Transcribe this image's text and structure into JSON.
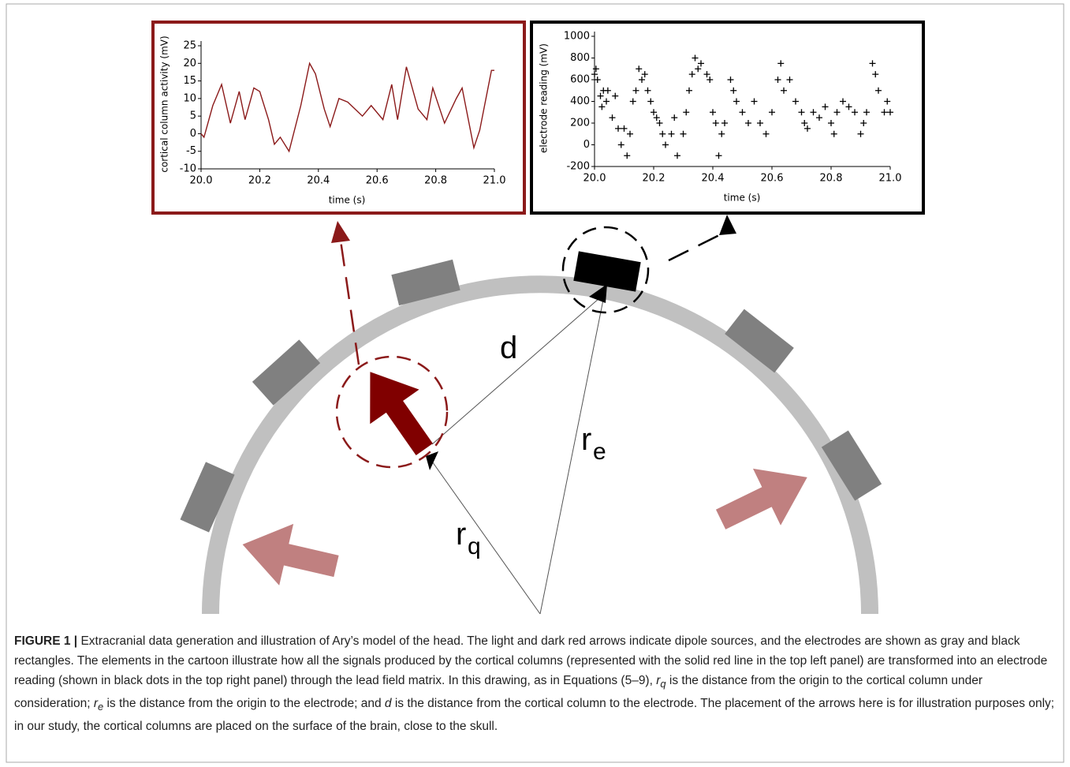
{
  "chart_data": [
    {
      "type": "line",
      "color": "#8b1a1a",
      "xlabel": "time (s)",
      "ylabel": "cortical column activity (mV)",
      "x": [
        20.0,
        20.01,
        20.04,
        20.07,
        20.1,
        20.13,
        20.15,
        20.18,
        20.2,
        20.23,
        20.25,
        20.27,
        20.3,
        20.34,
        20.37,
        20.39,
        20.42,
        20.44,
        20.47,
        20.5,
        20.55,
        20.58,
        20.62,
        20.65,
        20.67,
        20.7,
        20.74,
        20.77,
        20.79,
        20.83,
        20.87,
        20.89,
        20.93,
        20.95,
        20.99,
        21.0
      ],
      "values": [
        0,
        -1,
        8,
        14,
        3,
        12,
        4,
        13,
        12,
        4,
        -3,
        -1,
        -5,
        8,
        20,
        17,
        7,
        2,
        10,
        9,
        5,
        8,
        4,
        14,
        4,
        19,
        7,
        4,
        13,
        3,
        10,
        13,
        -4,
        1,
        18,
        18
      ],
      "xlim": [
        20,
        21
      ],
      "xticks": [
        {
          "value": 20,
          "label": "20.0"
        },
        20.2,
        20.4,
        20.6,
        20.8,
        {
          "value": 21,
          "label": "21.0"
        }
      ],
      "ylim": [
        -10,
        25
      ],
      "yticks": [
        -10,
        -5,
        0,
        5,
        10,
        15,
        20,
        25
      ]
    },
    {
      "type": "scatter",
      "color": "#000000",
      "marker": "+",
      "xlabel": "time (s)",
      "ylabel": "electrode reading (mV)",
      "x": [
        20.0,
        20.005,
        20.01,
        20.02,
        20.025,
        20.03,
        20.04,
        20.045,
        20.06,
        20.07,
        20.08,
        20.09,
        20.1,
        20.11,
        20.12,
        20.13,
        20.14,
        20.15,
        20.16,
        20.17,
        20.18,
        20.19,
        20.2,
        20.21,
        20.22,
        20.23,
        20.24,
        20.26,
        20.27,
        20.28,
        20.3,
        20.31,
        20.32,
        20.33,
        20.34,
        20.35,
        20.36,
        20.38,
        20.39,
        20.4,
        20.41,
        20.42,
        20.43,
        20.44,
        20.46,
        20.47,
        20.48,
        20.5,
        20.52,
        20.54,
        20.56,
        20.58,
        20.6,
        20.62,
        20.63,
        20.64,
        20.66,
        20.68,
        20.7,
        20.71,
        20.72,
        20.74,
        20.76,
        20.78,
        20.8,
        20.81,
        20.82,
        20.84,
        20.86,
        20.88,
        20.9,
        20.91,
        20.92,
        20.94,
        20.95,
        20.96,
        20.98,
        20.99,
        21.0
      ],
      "values": [
        650,
        700,
        600,
        450,
        350,
        500,
        400,
        500,
        250,
        450,
        150,
        0,
        150,
        -100,
        100,
        400,
        500,
        700,
        600,
        650,
        500,
        400,
        300,
        250,
        200,
        100,
        0,
        100,
        250,
        -100,
        100,
        300,
        500,
        650,
        800,
        700,
        750,
        650,
        600,
        300,
        200,
        -100,
        100,
        200,
        600,
        500,
        400,
        300,
        200,
        400,
        200,
        100,
        300,
        600,
        750,
        500,
        600,
        400,
        300,
        200,
        150,
        300,
        250,
        350,
        200,
        100,
        300,
        400,
        350,
        300,
        100,
        200,
        300,
        750,
        650,
        500,
        300,
        400,
        300
      ],
      "xlim": [
        20,
        21
      ],
      "xticks": [
        {
          "value": 20,
          "label": "20.0"
        },
        20.2,
        20.4,
        20.6,
        20.8,
        {
          "value": 21,
          "label": "21.0"
        }
      ],
      "ylim": [
        -200,
        1000
      ],
      "yticks": [
        -200,
        0,
        200,
        400,
        600,
        800,
        1000
      ]
    }
  ],
  "diagram": {
    "d_label": "d",
    "re_label": "r",
    "re_sub": "e",
    "rq_label": "r",
    "rq_sub": "q"
  },
  "caption": {
    "parts": [
      "FIGURE 1 |",
      " Extracranial data generation and illustration of Ary’s model of the head. The light and dark red arrows indicate dipole sources, and the electrodes are shown as gray and black rectangles. The elements in the cartoon illustrate how all the signals produced by the cortical columns (represented with the solid red line in the top left panel) are transformed into an electrode reading (shown in black dots in the top right panel) through the lead field matrix. In this drawing, as in Equations (5–9), ",
      "r",
      "q",
      " is the distance from the origin to the cortical column under consideration; ",
      "r",
      "e",
      " is the distance from the origin to the electrode; and ",
      "d",
      " is the distance from the cortical column to the electrode. The placement of the arrows here is for illustration purposes only; in our study, the cortical columns are placed on the surface of the brain, close to the skull."
    ]
  }
}
